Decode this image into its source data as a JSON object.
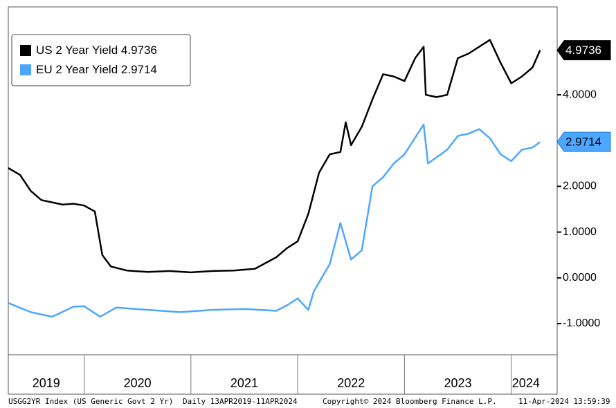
{
  "chart_data": {
    "type": "line",
    "xlim": [
      2019.29,
      2024.43
    ],
    "xticks": [
      {
        "value": 2019,
        "label": "2019"
      },
      {
        "value": 2020,
        "label": "2020"
      },
      {
        "value": 2021,
        "label": "2021"
      },
      {
        "value": 2022,
        "label": "2022"
      },
      {
        "value": 2023,
        "label": "2023"
      },
      {
        "value": 2024,
        "label": "2024"
      }
    ],
    "ylim": [
      -1.68,
      5.92
    ],
    "yticks": [
      {
        "value": 4,
        "label": "4.0000"
      },
      {
        "value": 2,
        "label": "2.0000"
      },
      {
        "value": 1,
        "label": "1.0000"
      },
      {
        "value": 0,
        "label": "0.0000"
      },
      {
        "value": -1,
        "label": "-1.0000"
      }
    ],
    "legend": "top-left",
    "series": [
      {
        "name": "US 2 Year Yield",
        "color": "#000000",
        "x": [
          2019.29,
          2019.4,
          2019.5,
          2019.6,
          2019.7,
          2019.8,
          2019.9,
          2020.0,
          2020.1,
          2020.17,
          2020.25,
          2020.4,
          2020.6,
          2020.8,
          2021.0,
          2021.2,
          2021.4,
          2021.6,
          2021.8,
          2021.9,
          2022.0,
          2022.1,
          2022.2,
          2022.3,
          2022.4,
          2022.45,
          2022.5,
          2022.6,
          2022.7,
          2022.8,
          2022.9,
          2023.0,
          2023.1,
          2023.18,
          2023.2,
          2023.3,
          2023.4,
          2023.5,
          2023.6,
          2023.7,
          2023.8,
          2023.9,
          2024.0,
          2024.1,
          2024.2,
          2024.27
        ],
        "values": [
          2.4,
          2.25,
          1.9,
          1.7,
          1.65,
          1.6,
          1.62,
          1.58,
          1.45,
          0.5,
          0.25,
          0.16,
          0.13,
          0.15,
          0.12,
          0.15,
          0.16,
          0.2,
          0.45,
          0.65,
          0.8,
          1.4,
          2.3,
          2.7,
          2.75,
          3.4,
          2.9,
          3.3,
          3.9,
          4.45,
          4.4,
          4.3,
          4.8,
          5.05,
          4.0,
          3.95,
          4.0,
          4.8,
          4.9,
          5.05,
          5.2,
          4.7,
          4.25,
          4.4,
          4.6,
          4.9736
        ]
      },
      {
        "name": "EU 2 Year Yield",
        "color": "#4da6ff",
        "x": [
          2019.29,
          2019.5,
          2019.7,
          2019.9,
          2020.0,
          2020.15,
          2020.3,
          2020.6,
          2020.9,
          2021.2,
          2021.5,
          2021.8,
          2021.9,
          2022.0,
          2022.1,
          2022.15,
          2022.3,
          2022.4,
          2022.5,
          2022.6,
          2022.7,
          2022.8,
          2022.9,
          2023.0,
          2023.18,
          2023.22,
          2023.4,
          2023.5,
          2023.6,
          2023.7,
          2023.8,
          2023.9,
          2024.0,
          2024.1,
          2024.2,
          2024.27
        ],
        "values": [
          -0.55,
          -0.75,
          -0.85,
          -0.63,
          -0.62,
          -0.85,
          -0.65,
          -0.7,
          -0.75,
          -0.7,
          -0.68,
          -0.72,
          -0.6,
          -0.45,
          -0.7,
          -0.3,
          0.3,
          1.2,
          0.4,
          0.6,
          2.0,
          2.2,
          2.5,
          2.7,
          3.35,
          2.5,
          2.8,
          3.1,
          3.15,
          3.25,
          3.05,
          2.7,
          2.55,
          2.8,
          2.85,
          2.9714
        ]
      }
    ],
    "footer": [
      "USGG2YR Index (US Generic Govt 2 Yr)",
      "Daily 13APR2019-11APR2024",
      "Copyright© 2024 Bloomberg Finance L.P.",
      "11-Apr-2024 13:59:39"
    ]
  }
}
